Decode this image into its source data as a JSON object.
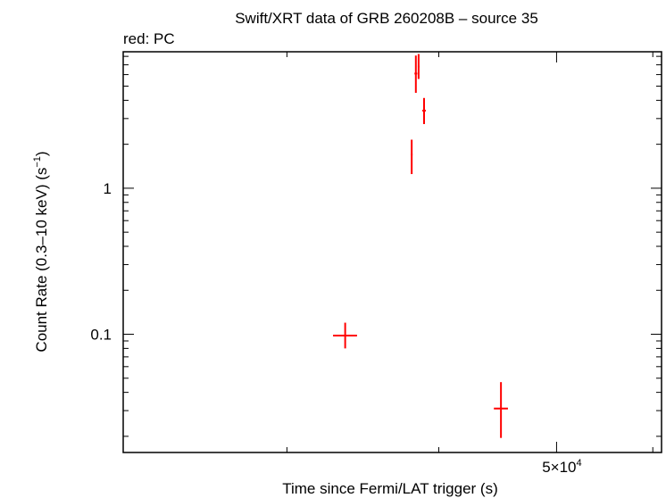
{
  "chart_data": {
    "type": "scatter",
    "title": "Swift/XRT data of GRB 260208B – source 35",
    "subtitle": "red: PC",
    "xlabel": "Time since Fermi/LAT trigger (s)",
    "ylabel": "Count Rate (0.3–10 keV) (s",
    "ylabel_sup": "−1",
    "ylabel_close": ")",
    "xscale": "log",
    "yscale": "log",
    "xlim": [
      22000,
      61000
    ],
    "ylim": [
      0.0155,
      8.6
    ],
    "x_tick_labels": [
      {
        "value": 50000,
        "base": "5×10",
        "exp": "4"
      }
    ],
    "y_tick_labels": [
      {
        "value": 1,
        "text": "1"
      },
      {
        "value": 0.1,
        "text": "0.1"
      }
    ],
    "series": [
      {
        "color": "#ff0000",
        "points": [
          {
            "x": 33500,
            "xerr": [
              760,
              760
            ],
            "y": 0.098,
            "yerr": [
              0.018,
              0.022
            ]
          },
          {
            "x": 38000,
            "xerr": [
              60,
              60
            ],
            "y": 1.7,
            "yerr": [
              0.45,
              0.45
            ]
          },
          {
            "x": 38300,
            "xerr": [
              100,
              100
            ],
            "y": 6.1,
            "yerr": [
              1.6,
              2.0
            ]
          },
          {
            "x": 38500,
            "xerr": [
              60,
              60
            ],
            "y": 6.8,
            "yerr": [
              1.2,
              1.5
            ]
          },
          {
            "x": 38900,
            "xerr": [
              130,
              130
            ],
            "y": 3.4,
            "yerr": [
              0.65,
              0.75
            ]
          },
          {
            "x": 45000,
            "xerr": [
              600,
              600
            ],
            "y": 0.031,
            "yerr": [
              0.0115,
              0.016
            ]
          }
        ]
      }
    ]
  }
}
